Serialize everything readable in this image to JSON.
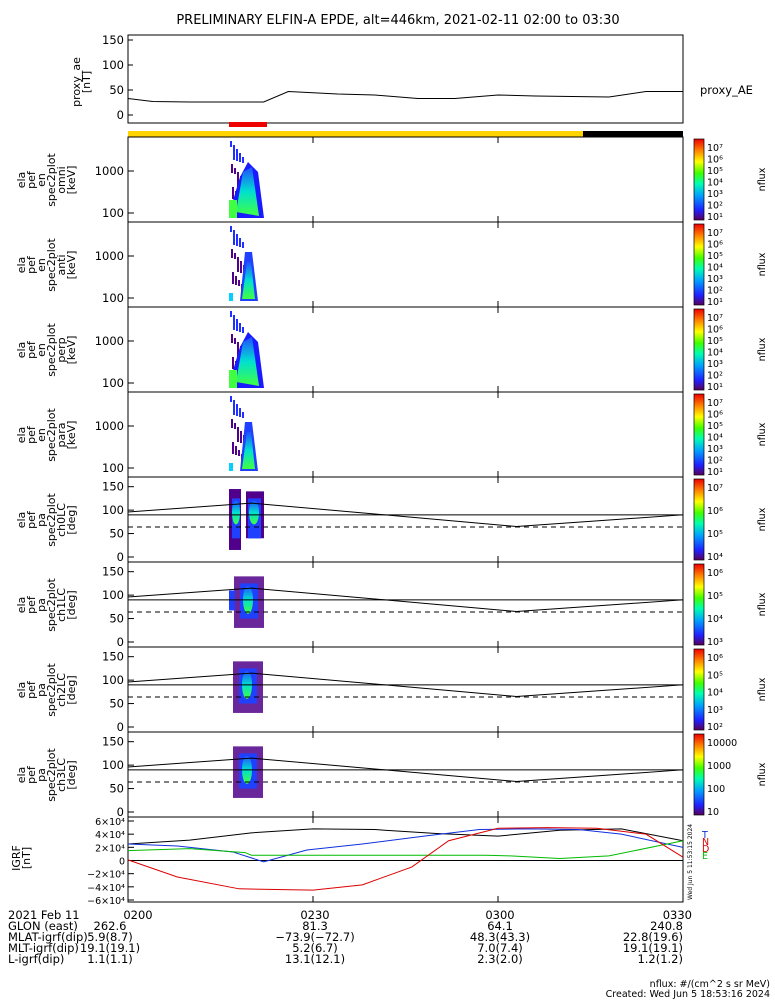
{
  "title": "PRELIMINARY ELFIN-A EPDE, alt=446km, 2021-02-11 02:00 to 03:30",
  "time_ticks": [
    "0200",
    "0230",
    "0300",
    "0330"
  ],
  "proxy_panel": {
    "ylabel": [
      "proxy_ae",
      "[nT]"
    ],
    "y_ticks": [
      "150",
      "100",
      "50",
      "0"
    ],
    "legend": "proxy_AE"
  },
  "colors": {
    "science_zone": "#ee0000",
    "status_bar": "#ffd400",
    "status_bar_end": "#000000",
    "bx": "#dd0000",
    "by": "#1030dd",
    "bz": "#00bb00",
    "bt": "#000000"
  },
  "spec_panels": [
    {
      "ylabel": [
        "ela",
        "pef",
        "en",
        "spec2plot",
        "omni",
        "[keV]"
      ],
      "y_ticks": [
        "1000",
        "100"
      ],
      "cb_ticks": [
        "10⁷",
        "10⁶",
        "10⁵",
        "10⁴",
        "10³",
        "10²",
        "10¹"
      ],
      "cb_label": "nflux"
    },
    {
      "ylabel": [
        "ela",
        "pef",
        "en",
        "spec2plot",
        "anti",
        "[keV]"
      ],
      "y_ticks": [
        "1000",
        "100"
      ],
      "cb_ticks": [
        "10⁷",
        "10⁶",
        "10⁵",
        "10⁴",
        "10³",
        "10²",
        "10¹"
      ],
      "cb_label": "nflux"
    },
    {
      "ylabel": [
        "ela",
        "pef",
        "en",
        "spec2plot",
        "perp",
        "[keV]"
      ],
      "y_ticks": [
        "1000",
        "100"
      ],
      "cb_ticks": [
        "10⁷",
        "10⁶",
        "10⁵",
        "10⁴",
        "10³",
        "10²",
        "10¹"
      ],
      "cb_label": "nflux"
    },
    {
      "ylabel": [
        "ela",
        "pef",
        "en",
        "spec2plot",
        "para",
        "[keV]"
      ],
      "y_ticks": [
        "1000",
        "100"
      ],
      "cb_ticks": [
        "10⁷",
        "10⁶",
        "10⁵",
        "10⁴",
        "10³",
        "10²",
        "10¹"
      ],
      "cb_label": "nflux"
    }
  ],
  "pa_panels": [
    {
      "ylabel": [
        "ela",
        "pef",
        "pa",
        "spec2plot",
        "ch0LC",
        "[deg]"
      ],
      "y_ticks": [
        "150",
        "100",
        "50",
        "0"
      ],
      "cb_ticks": [
        "10⁷",
        "10⁶",
        "10⁵",
        "10⁴"
      ],
      "cb_label": "nflux"
    },
    {
      "ylabel": [
        "ela",
        "pef",
        "pa",
        "spec2plot",
        "ch1LC",
        "[deg]"
      ],
      "y_ticks": [
        "150",
        "100",
        "50",
        "0"
      ],
      "cb_ticks": [
        "10⁶",
        "10⁵",
        "10⁴",
        "10³"
      ],
      "cb_label": "nflux"
    },
    {
      "ylabel": [
        "ela",
        "pef",
        "pa",
        "spec2plot",
        "ch2LC",
        "[deg]"
      ],
      "y_ticks": [
        "150",
        "100",
        "50",
        "0"
      ],
      "cb_ticks": [
        "10⁶",
        "10⁵",
        "10⁴",
        "10³",
        "10²"
      ],
      "cb_label": "nflux"
    },
    {
      "ylabel": [
        "ela",
        "pef",
        "pa",
        "spec2plot",
        "ch3LC",
        "[deg]"
      ],
      "y_ticks": [
        "150",
        "100",
        "50",
        "0"
      ],
      "cb_ticks": [
        "10000",
        "1000",
        "100",
        "10"
      ],
      "cb_label": "nflux"
    }
  ],
  "igrf_panel": {
    "ylabel": [
      "IGRF",
      "[nT]"
    ],
    "y_ticks": [
      "6×10⁴",
      "4×10⁴",
      "2×10⁴",
      "0",
      "−2×10⁴",
      "−4×10⁴",
      "−6×10⁴"
    ],
    "legend": [
      "T",
      "N",
      "D",
      "E"
    ],
    "stamp": "Wed Jun  5 11:53:15 2024"
  },
  "chart_data": {
    "type": "line",
    "title": "PRELIMINARY ELFIN-A EPDE, alt=446km, 2021-02-11 02:00 to 03:30",
    "x_label_times": [
      "0200",
      "0230",
      "0300",
      "0330"
    ],
    "xlim": [
      "02:00",
      "03:30"
    ],
    "series": [
      {
        "name": "proxy_AE",
        "ylim": [
          0,
          160
        ],
        "x_min": [
          0,
          4,
          10,
          22,
          26,
          34,
          40,
          47,
          53,
          60,
          66,
          72,
          78,
          84,
          90
        ],
        "values": [
          33,
          27,
          26,
          26,
          47,
          42,
          40,
          33,
          33,
          40,
          38,
          37,
          36,
          47,
          47
        ]
      },
      {
        "name": "T",
        "ylim": [
          -60000,
          60000
        ],
        "x_min": [
          0,
          10,
          20,
          30,
          40,
          50,
          60,
          70,
          80,
          90
        ],
        "values": [
          25000,
          31000,
          42000,
          48000,
          47000,
          41000,
          37000,
          46000,
          48000,
          30000
        ]
      },
      {
        "name": "N",
        "ylim": [
          -60000,
          60000
        ],
        "x_min": [
          0,
          8,
          17,
          22,
          29,
          38,
          48,
          57,
          65,
          73,
          80,
          90
        ],
        "values": [
          25000,
          22000,
          13000,
          -2000,
          16000,
          25000,
          37000,
          47000,
          48000,
          47000,
          40000,
          20000
        ]
      },
      {
        "name": "D",
        "ylim": [
          -60000,
          60000
        ],
        "x_min": [
          0,
          10,
          19,
          20,
          40,
          50,
          58,
          62,
          70,
          78,
          90
        ],
        "values": [
          15000,
          18000,
          12000,
          8000,
          8000,
          8000,
          8000,
          7000,
          3000,
          7000,
          30000
        ]
      },
      {
        "name": "E",
        "ylim": [
          -60000,
          60000
        ],
        "x_min": [
          0,
          8,
          18,
          30,
          38,
          46,
          52,
          60,
          68,
          76,
          84,
          90
        ],
        "values": [
          1000,
          -25000,
          -43000,
          -45000,
          -37000,
          -10000,
          30000,
          49000,
          50000,
          49000,
          40000,
          5000
        ]
      }
    ]
  },
  "footer": {
    "rows": [
      {
        "label": "2021 Feb 11",
        "values": [
          "0200",
          "0230",
          "0300",
          "0330"
        ]
      },
      {
        "label": "GLON (east)",
        "values": [
          "262.6",
          "81.3",
          "64.1",
          "240.8"
        ]
      },
      {
        "label": "MLAT-igrf(dip)",
        "values": [
          "5.9(8.7)",
          "−73.9(−72.7)",
          "48.3(43.3)",
          "22.8(19.6)"
        ]
      },
      {
        "label": "MLT-igrf(dip)",
        "values": [
          "19.1(19.1)",
          "5.2(6.7)",
          "7.0(7.4)",
          "19.1(19.1)"
        ]
      },
      {
        "label": "L-igrf(dip)",
        "values": [
          "1.1(1.1)",
          "13.1(12.1)",
          "2.3(2.0)",
          "1.2(1.2)"
        ]
      }
    ],
    "units_note": "nflux: #/(cm^2 s sr MeV)",
    "created": "Created: Wed Jun  5 18:53:16 2024"
  }
}
